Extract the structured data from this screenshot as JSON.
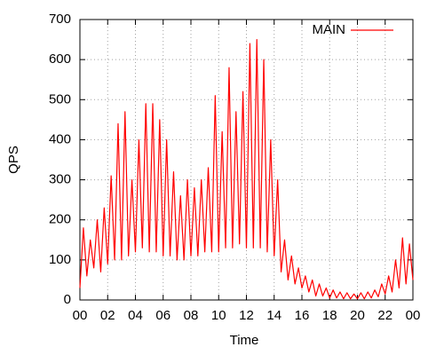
{
  "chart_data": {
    "type": "line",
    "xlabel": "Time",
    "ylabel": "QPS",
    "x": [
      0,
      0.25,
      0.5,
      0.75,
      1,
      1.25,
      1.5,
      1.75,
      2,
      2.25,
      2.5,
      2.75,
      3,
      3.25,
      3.5,
      3.75,
      4,
      4.25,
      4.5,
      4.75,
      5,
      5.25,
      5.5,
      5.75,
      6,
      6.25,
      6.5,
      6.75,
      7,
      7.25,
      7.5,
      7.75,
      8,
      8.25,
      8.5,
      8.75,
      9,
      9.25,
      9.5,
      9.75,
      10,
      10.25,
      10.5,
      10.75,
      11,
      11.25,
      11.5,
      11.75,
      12,
      12.25,
      12.5,
      12.75,
      13,
      13.25,
      13.5,
      13.75,
      14,
      14.25,
      14.5,
      14.75,
      15,
      15.25,
      15.5,
      15.75,
      16,
      16.25,
      16.5,
      16.75,
      17,
      17.25,
      17.5,
      17.75,
      18,
      18.25,
      18.5,
      18.75,
      19,
      19.25,
      19.5,
      19.75,
      20,
      20.25,
      20.5,
      20.75,
      21,
      21.25,
      21.5,
      21.75,
      22,
      22.25,
      22.5,
      22.75,
      23,
      23.25,
      23.5,
      23.75,
      24
    ],
    "series": [
      {
        "name": "MAIN",
        "color": "#ff0000",
        "values": [
          30,
          180,
          60,
          150,
          80,
          200,
          70,
          230,
          90,
          310,
          100,
          440,
          100,
          470,
          110,
          300,
          120,
          400,
          130,
          490,
          120,
          490,
          120,
          450,
          110,
          400,
          110,
          320,
          100,
          260,
          100,
          300,
          110,
          280,
          110,
          300,
          120,
          330,
          120,
          510,
          120,
          420,
          130,
          580,
          130,
          470,
          140,
          520,
          130,
          640,
          130,
          650,
          130,
          600,
          120,
          400,
          110,
          300,
          70,
          150,
          50,
          110,
          40,
          80,
          30,
          60,
          20,
          50,
          10,
          40,
          10,
          30,
          5,
          25,
          5,
          20,
          3,
          18,
          3,
          15,
          3,
          18,
          3,
          20,
          5,
          25,
          8,
          40,
          15,
          60,
          20,
          100,
          30,
          155,
          40,
          140,
          50
        ]
      }
    ],
    "xlim": [
      0,
      24
    ],
    "xticks": [
      {
        "value": 0,
        "label": "00"
      },
      {
        "value": 2,
        "label": "02"
      },
      {
        "value": 4,
        "label": "04"
      },
      {
        "value": 6,
        "label": "06"
      },
      {
        "value": 8,
        "label": "08"
      },
      10,
      12,
      14,
      16,
      18,
      20,
      22,
      {
        "value": 24,
        "label": "00"
      }
    ],
    "ylim": [
      0,
      700
    ],
    "yticks": [
      0,
      100,
      200,
      300,
      400,
      500,
      600,
      700
    ],
    "grid": true,
    "legend": "top-right"
  }
}
